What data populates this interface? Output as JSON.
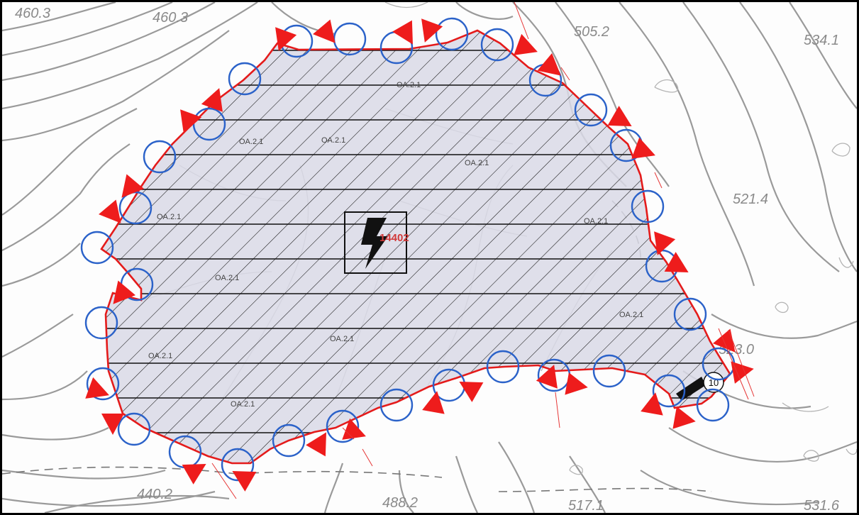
{
  "map": {
    "elevations": [
      "460.3",
      "505.2",
      "534.1",
      "521.4",
      "523.0",
      "440.2",
      "488.2",
      "517.1",
      "531.6"
    ],
    "zone_labels": [
      "OA.2.1",
      "OA.2.1",
      "OA.2.1",
      "OA.2.1",
      "OA.2.1",
      "OA.2.1",
      "OA.2.1",
      "OA.2.1",
      "OA.2.1",
      "OA.2.1"
    ],
    "substation_code": "14402",
    "parcel_marker": "10",
    "colors": {
      "boundary": "#e41b1b",
      "vertex_circle": "#2b62c9",
      "arrow": "#ee1c1c",
      "fill": "#d9d9e6",
      "contour": "#9a9a9a"
    },
    "icons": [
      "lightning-bolt-icon",
      "arrow-marker-icon"
    ]
  }
}
